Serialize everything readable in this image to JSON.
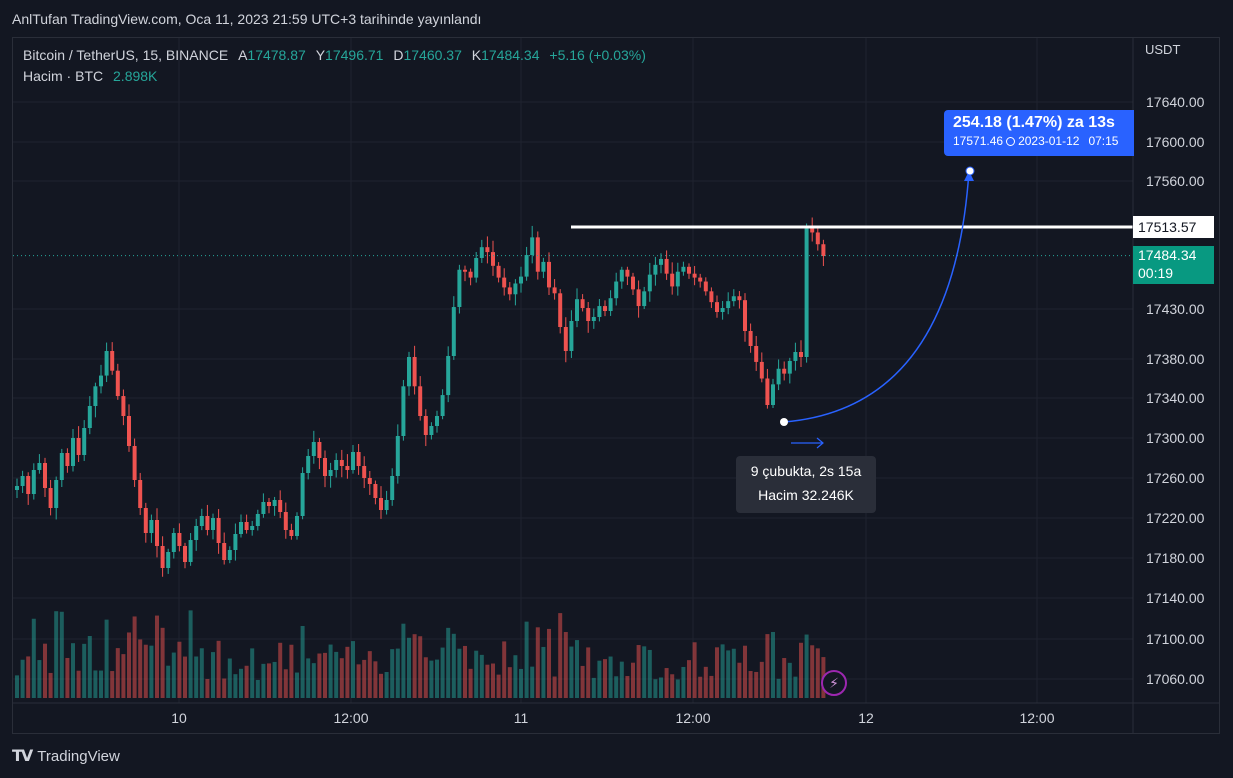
{
  "credit": "AnlTufan TradingView.com, Oca 11, 2023 21:59 UTC+3 tarihinde yayınlandı",
  "legend": {
    "symbol": "Bitcoin / TetherUS, 15, BINANCE",
    "open_label": "A",
    "open": "17478.87",
    "high_label": "Y",
    "high": "17496.71",
    "low_label": "D",
    "low": "17460.37",
    "close_label": "K",
    "close": "17484.34",
    "change": "+5.16 (+0.03%)",
    "volume_label": "Hacim · BTC",
    "volume": "2.898K"
  },
  "currency": "USDT",
  "price_axis": {
    "ticks": [
      "17640.00",
      "17600.00",
      "17560.00",
      "17430.00",
      "17380.00",
      "17340.00",
      "17300.00",
      "17260.00",
      "17220.00",
      "17180.00",
      "17140.00",
      "17100.00",
      "17060.00"
    ],
    "level_line": "17513.57",
    "last_price": "17484.34",
    "countdown": "00:19"
  },
  "time_axis": [
    "10",
    "12:00",
    "11",
    "12:00",
    "12",
    "12:00"
  ],
  "measure": {
    "headline": "254.18 (1.47%) za 13s",
    "detail_price": "17571.46",
    "detail_date": "2023-01-12",
    "detail_time": "07:15"
  },
  "tooltip": {
    "bars": "9 çubukta, 2s 15a",
    "volume": "Hacim 32.246K"
  },
  "brand": "TradingView",
  "colors": {
    "up": "#26a69a",
    "down": "#ef5350",
    "accent": "#2962ff",
    "background": "#131722"
  },
  "chart_data": {
    "type": "candlestick",
    "symbol": "Bitcoin / TetherUS",
    "interval": "15",
    "ylim": [
      17040,
      17690
    ],
    "yticks": [
      17060,
      17100,
      17140,
      17180,
      17220,
      17260,
      17300,
      17340,
      17380,
      17430,
      17560,
      17600,
      17640
    ],
    "x_labels": [
      "10",
      "12:00",
      "11",
      "12:00",
      "12",
      "12:00"
    ],
    "level": 17513.57,
    "last": 17484.34,
    "close": [
      17252,
      17262,
      17244,
      17268,
      17275,
      17250,
      17230,
      17258,
      17285,
      17272,
      17300,
      17283,
      17310,
      17332,
      17352,
      17363,
      17388,
      17368,
      17342,
      17322,
      17292,
      17258,
      17230,
      17205,
      17218,
      17192,
      17170,
      17186,
      17205,
      17192,
      17176,
      17198,
      17212,
      17222,
      17208,
      17220,
      17195,
      17178,
      17188,
      17204,
      17216,
      17208,
      17212,
      17224,
      17236,
      17232,
      17238,
      17226,
      17208,
      17202,
      17222,
      17265,
      17282,
      17296,
      17280,
      17262,
      17268,
      17278,
      17272,
      17268,
      17286,
      17272,
      17260,
      17254,
      17240,
      17228,
      17238,
      17262,
      17302,
      17352,
      17382,
      17352,
      17322,
      17303,
      17312,
      17322,
      17343,
      17383,
      17432,
      17470,
      17468,
      17462,
      17482,
      17493,
      17488,
      17474,
      17462,
      17452,
      17445,
      17456,
      17463,
      17485,
      17503,
      17468,
      17478,
      17452,
      17446,
      17412,
      17388,
      17418,
      17440,
      17431,
      17418,
      17422,
      17433,
      17428,
      17441,
      17458,
      17470,
      17463,
      17450,
      17433,
      17448,
      17465,
      17475,
      17481,
      17466,
      17453,
      17468,
      17473,
      17466,
      17462,
      17458,
      17448,
      17437,
      17427,
      17431,
      17438,
      17443,
      17439,
      17408,
      17393,
      17377,
      17360,
      17333,
      17354,
      17370,
      17365,
      17378,
      17387,
      17382,
      17512,
      17508,
      17496,
      17484
    ]
  }
}
